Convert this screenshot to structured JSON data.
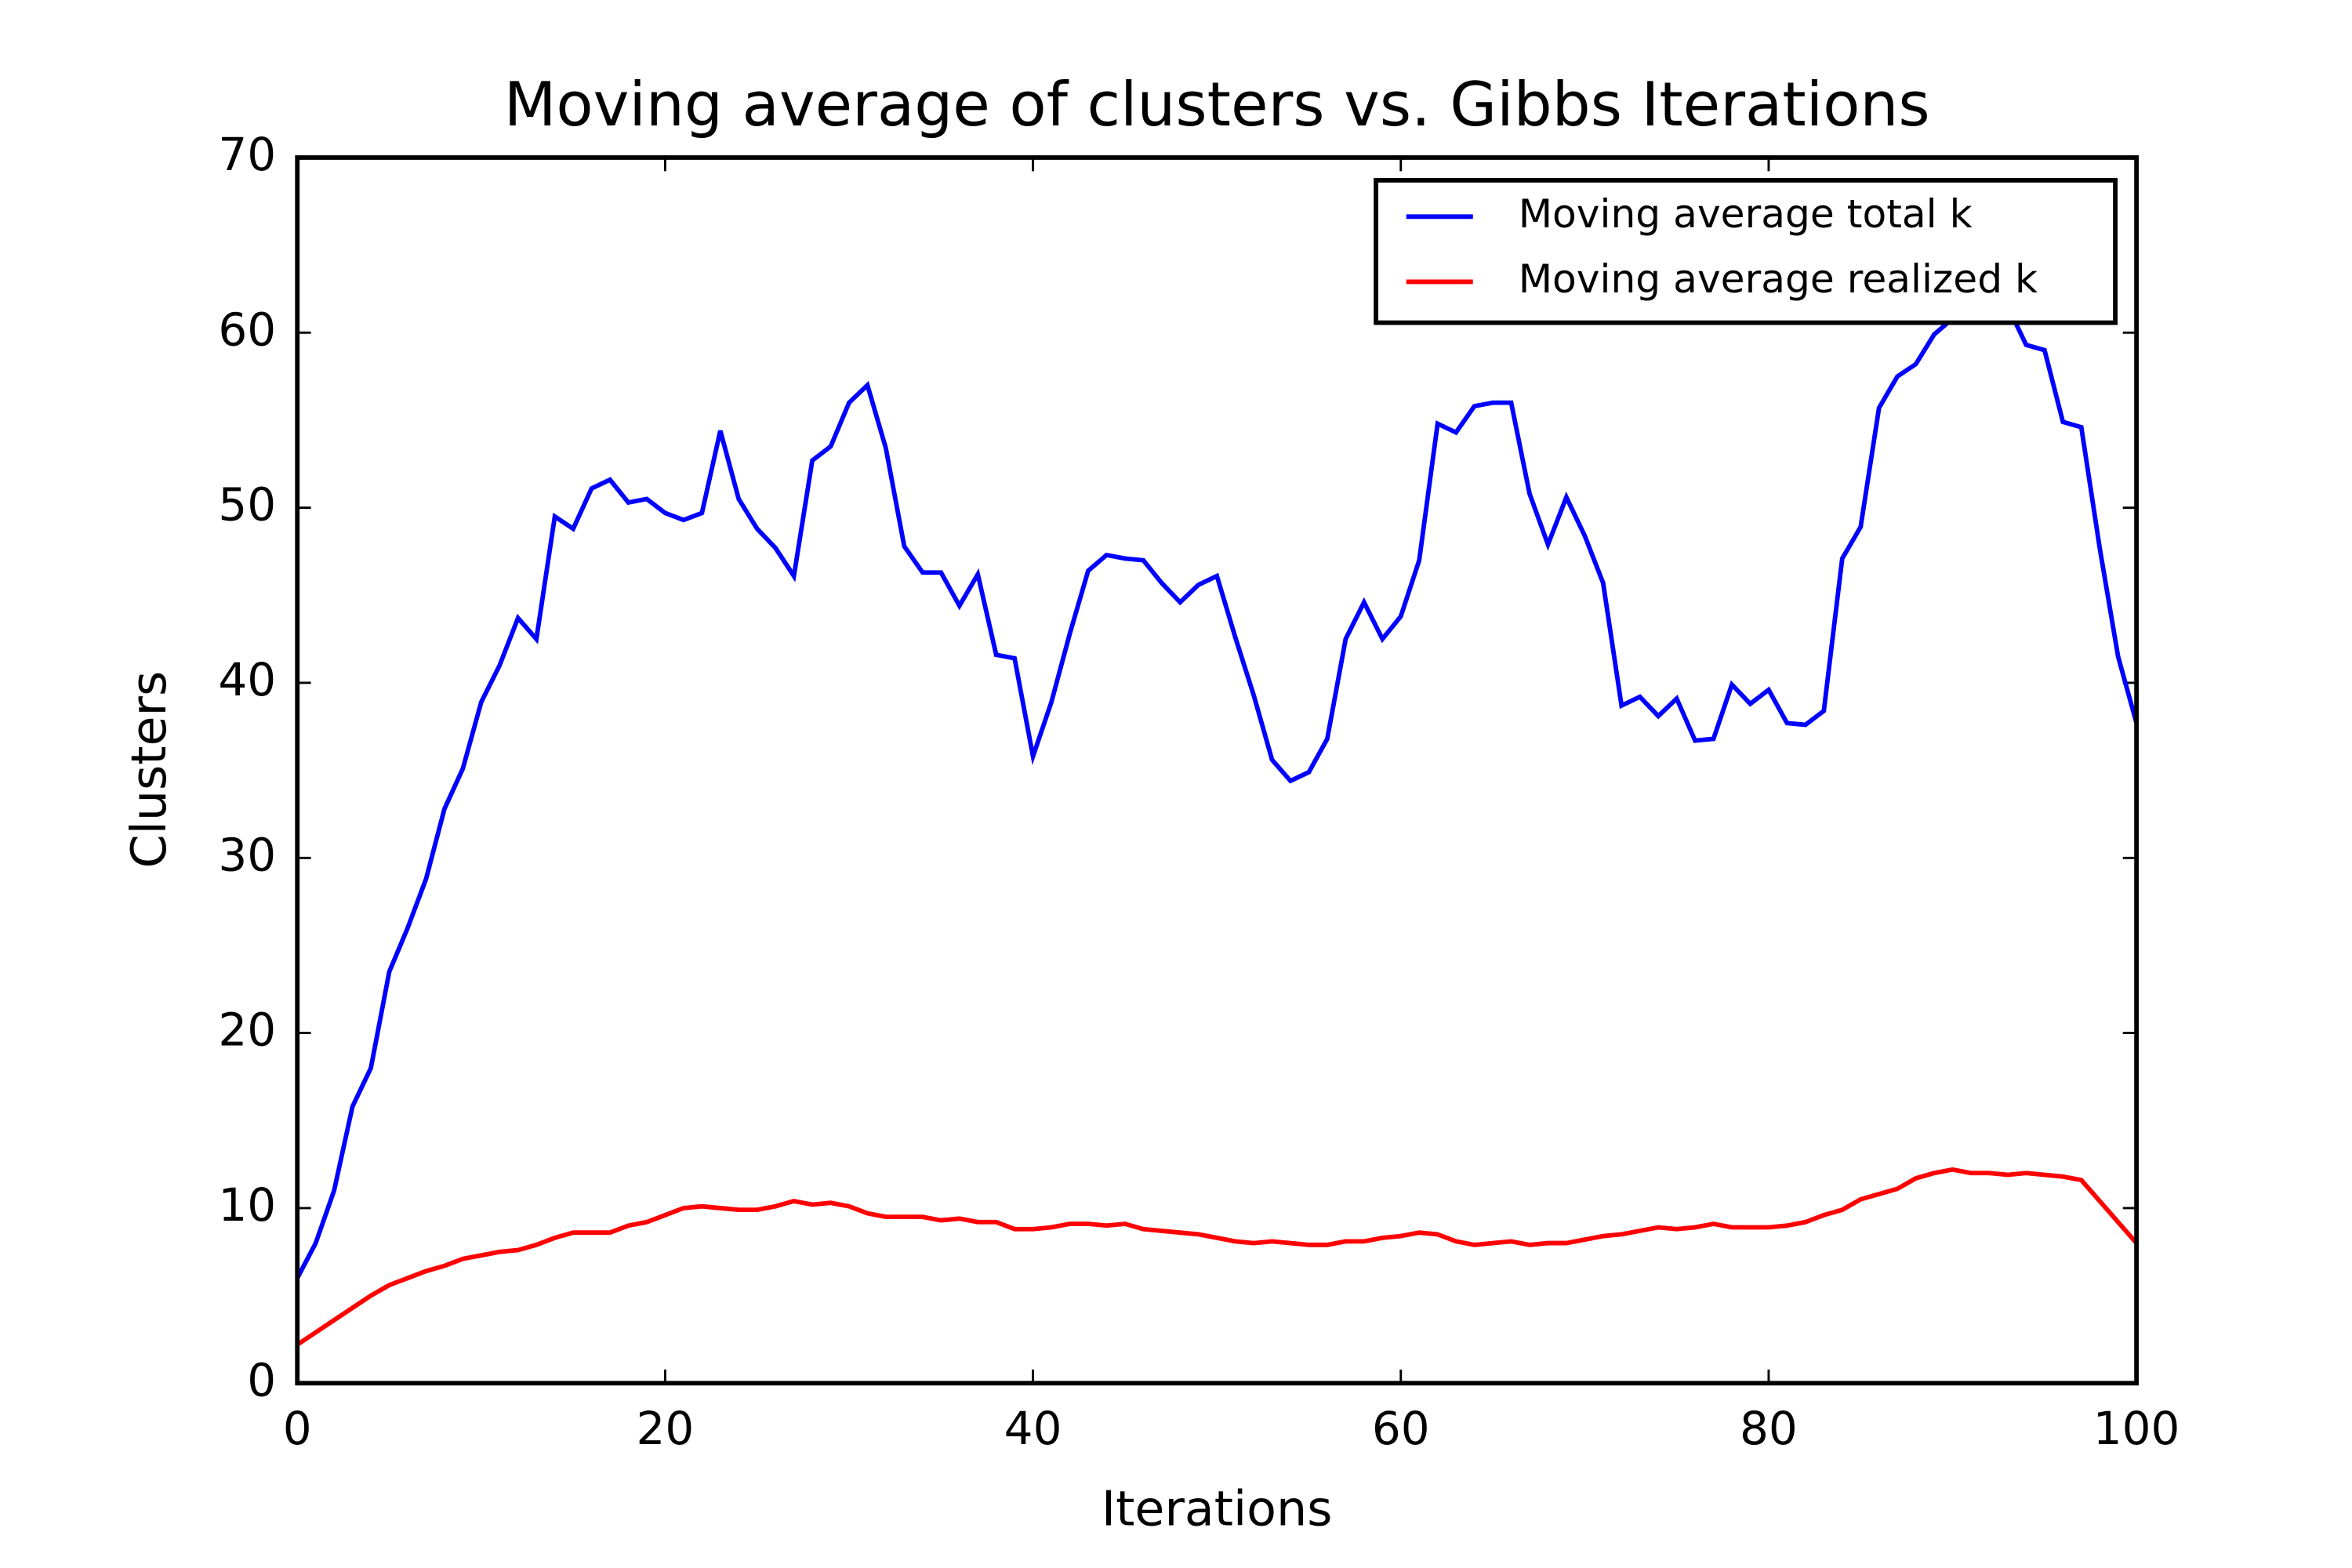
{
  "chart_data": {
    "type": "line",
    "title": "Moving average of clusters vs. Gibbs Iterations",
    "xlabel": "Iterations",
    "ylabel": "Clusters",
    "x": [
      0,
      1,
      2,
      3,
      4,
      5,
      6,
      7,
      8,
      9,
      10,
      11,
      12,
      13,
      14,
      15,
      16,
      17,
      18,
      19,
      20,
      21,
      22,
      23,
      24,
      25,
      26,
      27,
      28,
      29,
      30,
      31,
      32,
      33,
      34,
      35,
      36,
      37,
      38,
      39,
      40,
      41,
      42,
      43,
      44,
      45,
      46,
      47,
      48,
      49,
      50,
      51,
      52,
      53,
      54,
      55,
      56,
      57,
      58,
      59,
      60,
      61,
      62,
      63,
      64,
      65,
      66,
      67,
      68,
      69,
      70,
      71,
      72,
      73,
      74,
      75,
      76,
      77,
      78,
      79,
      80,
      81,
      82,
      83,
      84,
      85,
      86,
      87,
      88,
      89,
      90,
      91,
      92,
      93,
      94,
      95,
      96,
      97,
      98,
      99,
      100
    ],
    "series": [
      {
        "name": "Moving average total k",
        "color": "#0000ff",
        "values": [
          6,
          8,
          11,
          15.8,
          18,
          23.5,
          26,
          28.8,
          32.8,
          35.1,
          38.9,
          41,
          43.7,
          42.5,
          49.5,
          48.8,
          51.1,
          51.6,
          50.3,
          50.5,
          49.7,
          49.3,
          49.7,
          54.4,
          50.5,
          48.8,
          47.7,
          46.1,
          52.7,
          53.5,
          56,
          57,
          53.4,
          47.8,
          46.3,
          46.3,
          44.4,
          46.2,
          41.6,
          41.4,
          35.8,
          38.9,
          42.8,
          46.4,
          47.3,
          47.1,
          47,
          45.7,
          44.6,
          45.6,
          46.1,
          42.6,
          39.3,
          35.6,
          34.4,
          34.9,
          36.8,
          42.5,
          44.6,
          42.5,
          43.8,
          47,
          54.8,
          54.3,
          55.8,
          56,
          56,
          50.8,
          47.9,
          50.6,
          48.4,
          45.7,
          38.7,
          39.2,
          38.1,
          39.1,
          36.7,
          36.8,
          39.9,
          38.8,
          39.6,
          37.7,
          37.6,
          38.4,
          47.1,
          48.9,
          55.7,
          57.5,
          58.2,
          59.9,
          60.8,
          61,
          61.5,
          61.5,
          59.3,
          59,
          54.9,
          54.6,
          47.7,
          41.5,
          37.7
        ]
      },
      {
        "name": "Moving average realized k",
        "color": "#ff0000",
        "values": [
          2.2,
          2.9,
          3.6,
          4.3,
          5,
          5.6,
          6,
          6.4,
          6.7,
          7.1,
          7.3,
          7.5,
          7.6,
          7.9,
          8.3,
          8.6,
          8.6,
          8.6,
          9,
          9.2,
          9.6,
          10,
          10.1,
          10,
          9.9,
          9.9,
          10.1,
          10.4,
          10.2,
          10.3,
          10.1,
          9.7,
          9.5,
          9.5,
          9.5,
          9.3,
          9.4,
          9.2,
          9.2,
          8.8,
          8.8,
          8.9,
          9.1,
          9.1,
          9,
          9.1,
          8.8,
          8.7,
          8.6,
          8.5,
          8.3,
          8.1,
          8,
          8.1,
          8,
          7.9,
          7.9,
          8.1,
          8.1,
          8.3,
          8.4,
          8.6,
          8.5,
          8.1,
          7.9,
          8,
          8.1,
          7.9,
          8,
          8,
          8.2,
          8.4,
          8.5,
          8.7,
          8.9,
          8.8,
          8.9,
          9.1,
          8.9,
          8.9,
          8.9,
          9,
          9.2,
          9.6,
          9.9,
          10.5,
          10.8,
          11.1,
          11.7,
          12,
          12.2,
          12,
          12,
          11.9,
          12,
          11.9,
          11.8,
          11.6,
          10.4,
          9.2,
          8
        ]
      }
    ],
    "xlim": [
      0,
      100
    ],
    "xticks": [
      0,
      20,
      40,
      60,
      80,
      100
    ],
    "ylim": [
      0,
      70
    ],
    "yticks": [
      0,
      10,
      20,
      30,
      40,
      50,
      60,
      70
    ],
    "grid": false,
    "legend": "upper right"
  }
}
